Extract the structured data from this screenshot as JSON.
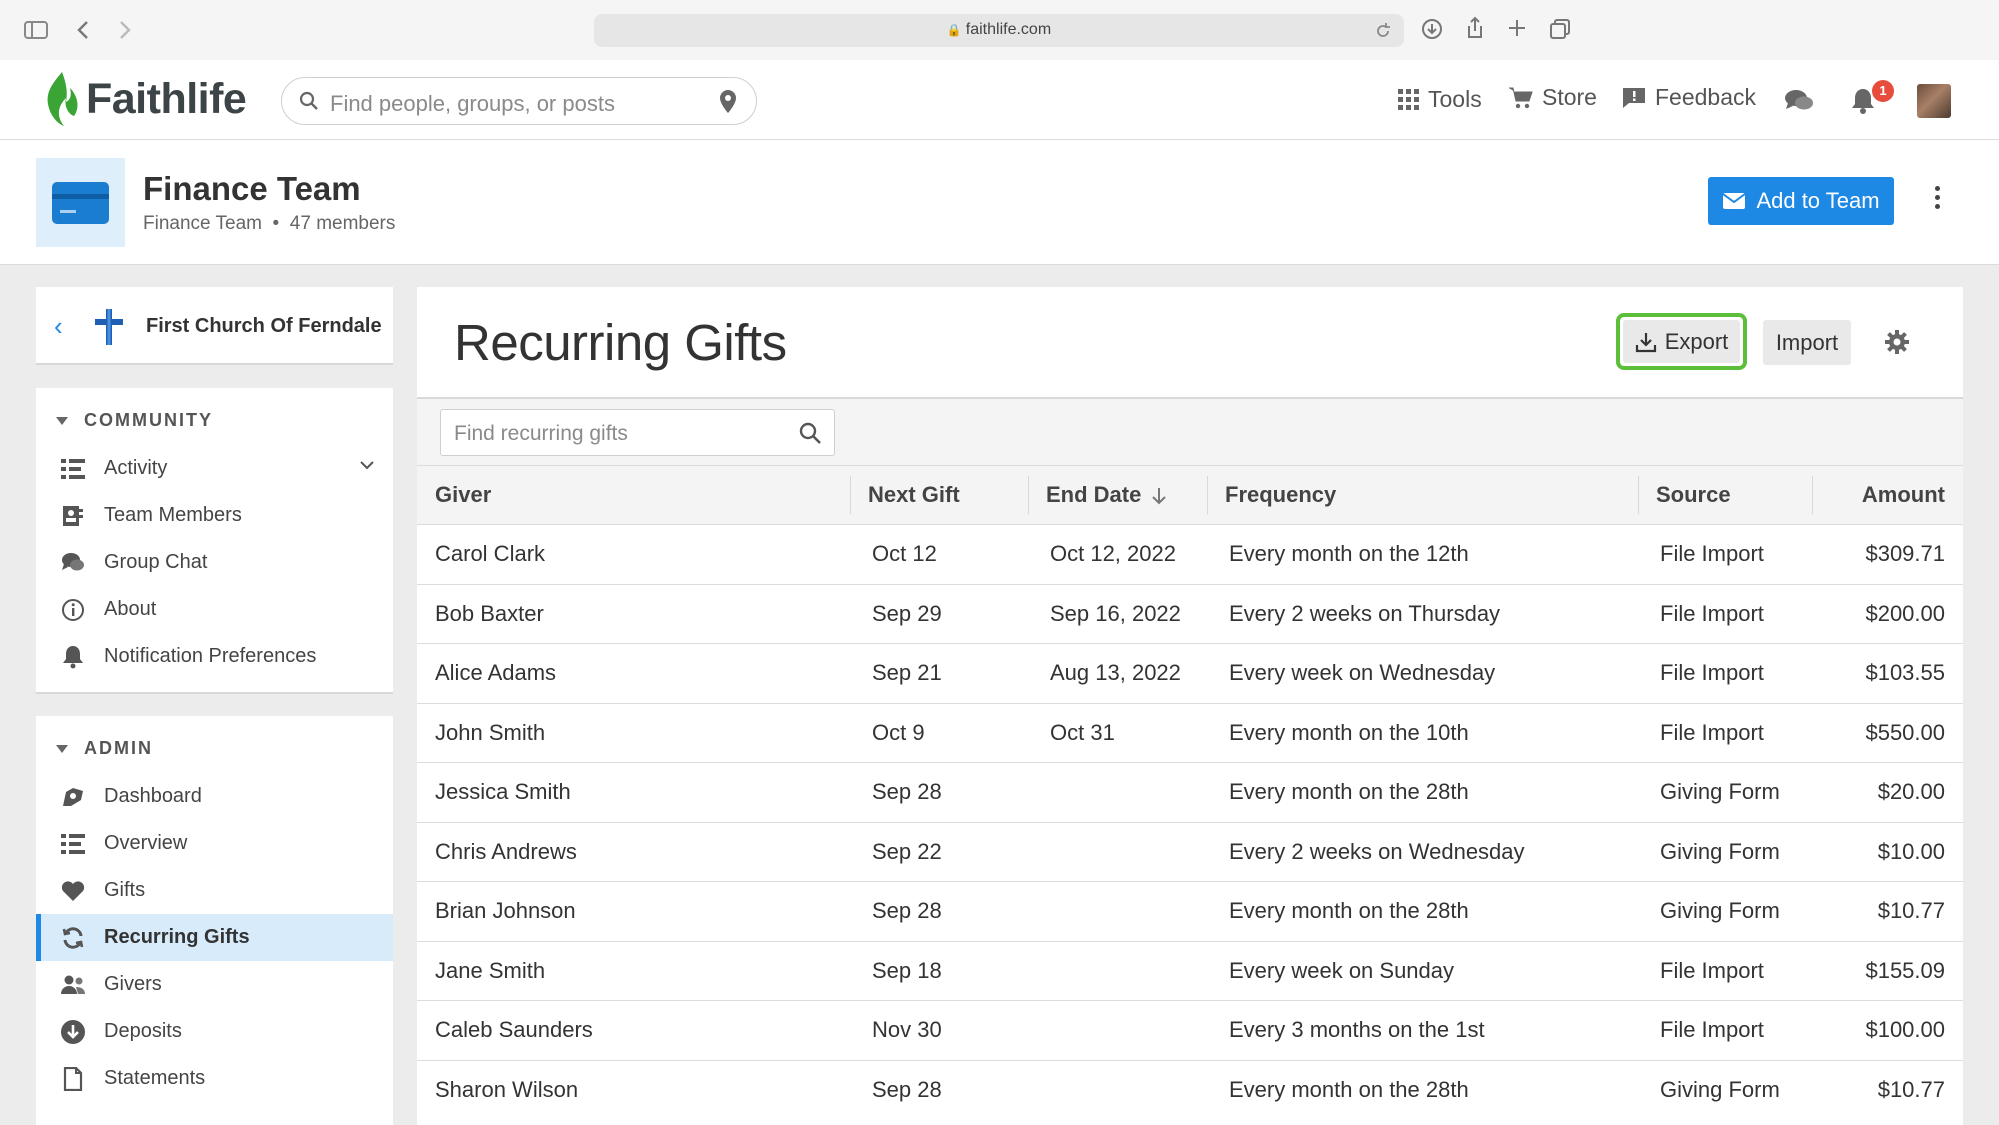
{
  "browser": {
    "url": "faithlife.com",
    "icons": [
      "sidebar-icon",
      "back-icon",
      "forward-icon",
      "reload-icon",
      "download-icon",
      "share-icon",
      "new-tab-icon",
      "tabs-icon"
    ]
  },
  "header": {
    "logo_text": "Faithlife",
    "search_placeholder": "Find people, groups, or posts",
    "nav": {
      "tools": "Tools",
      "store": "Store",
      "feedback": "Feedback"
    },
    "notification_count": "1"
  },
  "team": {
    "title": "Finance Team",
    "subtitle": "Finance Team",
    "members": "47 members",
    "add_button": "Add to Team"
  },
  "sidebar": {
    "church_name": "First Church Of Ferndale",
    "community": {
      "heading": "COMMUNITY",
      "items": [
        {
          "label": "Activity",
          "icon": "activity-list-icon"
        },
        {
          "label": "Team Members",
          "icon": "members-icon"
        },
        {
          "label": "Group Chat",
          "icon": "chat-icon"
        },
        {
          "label": "About",
          "icon": "info-icon"
        },
        {
          "label": "Notification Preferences",
          "icon": "bell-icon"
        }
      ]
    },
    "admin": {
      "heading": "ADMIN",
      "items": [
        {
          "label": "Dashboard",
          "icon": "dashboard-icon"
        },
        {
          "label": "Overview",
          "icon": "overview-list-icon"
        },
        {
          "label": "Gifts",
          "icon": "heart-icon"
        },
        {
          "label": "Recurring Gifts",
          "icon": "recurring-icon",
          "active": true
        },
        {
          "label": "Givers",
          "icon": "givers-icon"
        },
        {
          "label": "Deposits",
          "icon": "deposit-icon"
        },
        {
          "label": "Statements",
          "icon": "document-icon"
        }
      ]
    }
  },
  "main": {
    "title": "Recurring Gifts",
    "export_label": "Export",
    "import_label": "Import",
    "search_placeholder": "Find recurring gifts",
    "columns": [
      "Giver",
      "Next Gift",
      "End Date",
      "Frequency",
      "Source",
      "Amount"
    ],
    "rows": [
      {
        "giver": "Carol Clark",
        "next": "Oct 12",
        "end": "Oct 12, 2022",
        "freq": "Every month on the 12th",
        "source": "File Import",
        "amount": "$309.71"
      },
      {
        "giver": "Bob Baxter",
        "next": "Sep 29",
        "end": "Sep 16, 2022",
        "freq": "Every 2 weeks on Thursday",
        "source": "File Import",
        "amount": "$200.00"
      },
      {
        "giver": "Alice Adams",
        "next": "Sep 21",
        "end": "Aug 13, 2022",
        "freq": "Every week on Wednesday",
        "source": "File Import",
        "amount": "$103.55"
      },
      {
        "giver": "John Smith",
        "next": "Oct 9",
        "end": "Oct 31",
        "freq": "Every month on the 10th",
        "source": "File Import",
        "amount": "$550.00"
      },
      {
        "giver": "Jessica Smith",
        "next": "Sep 28",
        "end": "",
        "freq": "Every month on the 28th",
        "source": "Giving Form",
        "amount": "$20.00"
      },
      {
        "giver": "Chris Andrews",
        "next": "Sep 22",
        "end": "",
        "freq": "Every 2 weeks on Wednesday",
        "source": "Giving Form",
        "amount": "$10.00"
      },
      {
        "giver": "Brian Johnson",
        "next": "Sep 28",
        "end": "",
        "freq": "Every month on the 28th",
        "source": "Giving Form",
        "amount": "$10.77"
      },
      {
        "giver": "Jane Smith",
        "next": "Sep 18",
        "end": "",
        "freq": "Every week on Sunday",
        "source": "File Import",
        "amount": "$155.09"
      },
      {
        "giver": "Caleb Saunders",
        "next": "Nov 30",
        "end": "",
        "freq": "Every 3 months on the 1st",
        "source": "File Import",
        "amount": "$100.00"
      },
      {
        "giver": "Sharon Wilson",
        "next": "Sep 28",
        "end": "",
        "freq": "Every month on the 28th",
        "source": "Giving Form",
        "amount": "$10.77"
      }
    ]
  },
  "colors": {
    "accent": "#1e88e5",
    "highlight_ring": "#5bbf3a",
    "logo_green": "#3aa535",
    "badge": "#e74c3c"
  }
}
